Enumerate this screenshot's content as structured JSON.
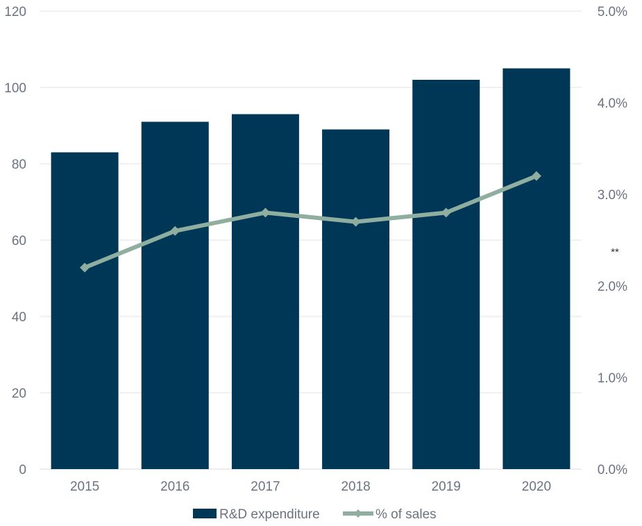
{
  "chart_data": {
    "type": "bar",
    "title": "",
    "xlabel": "",
    "ylabel": "",
    "categories": [
      "2015",
      "2016",
      "2017",
      "2018",
      "2019",
      "2020"
    ],
    "series": [
      {
        "name": "R&D expenditure",
        "type": "bar",
        "axis": "left",
        "values": [
          83,
          91,
          93,
          89,
          102,
          105
        ]
      },
      {
        "name": "% of sales",
        "type": "line",
        "axis": "right",
        "values": [
          2.2,
          2.6,
          2.8,
          2.7,
          2.8,
          3.2
        ]
      }
    ],
    "ylim": [
      0,
      120
    ],
    "y_ticks": [
      "0",
      "20",
      "40",
      "60",
      "80",
      "100",
      "120"
    ],
    "y2lim": [
      0,
      5
    ],
    "y2_ticks": [
      "0.0%",
      "1.0%",
      "2.0%",
      "3.0%",
      "4.0%",
      "5.0%"
    ],
    "annotation": "**",
    "grid": "horizontal",
    "legend": "bottom",
    "colors": {
      "bar": "#003756",
      "line": "#8fae9f",
      "grid": "#e3e3e3",
      "text": "#6b7280"
    }
  }
}
